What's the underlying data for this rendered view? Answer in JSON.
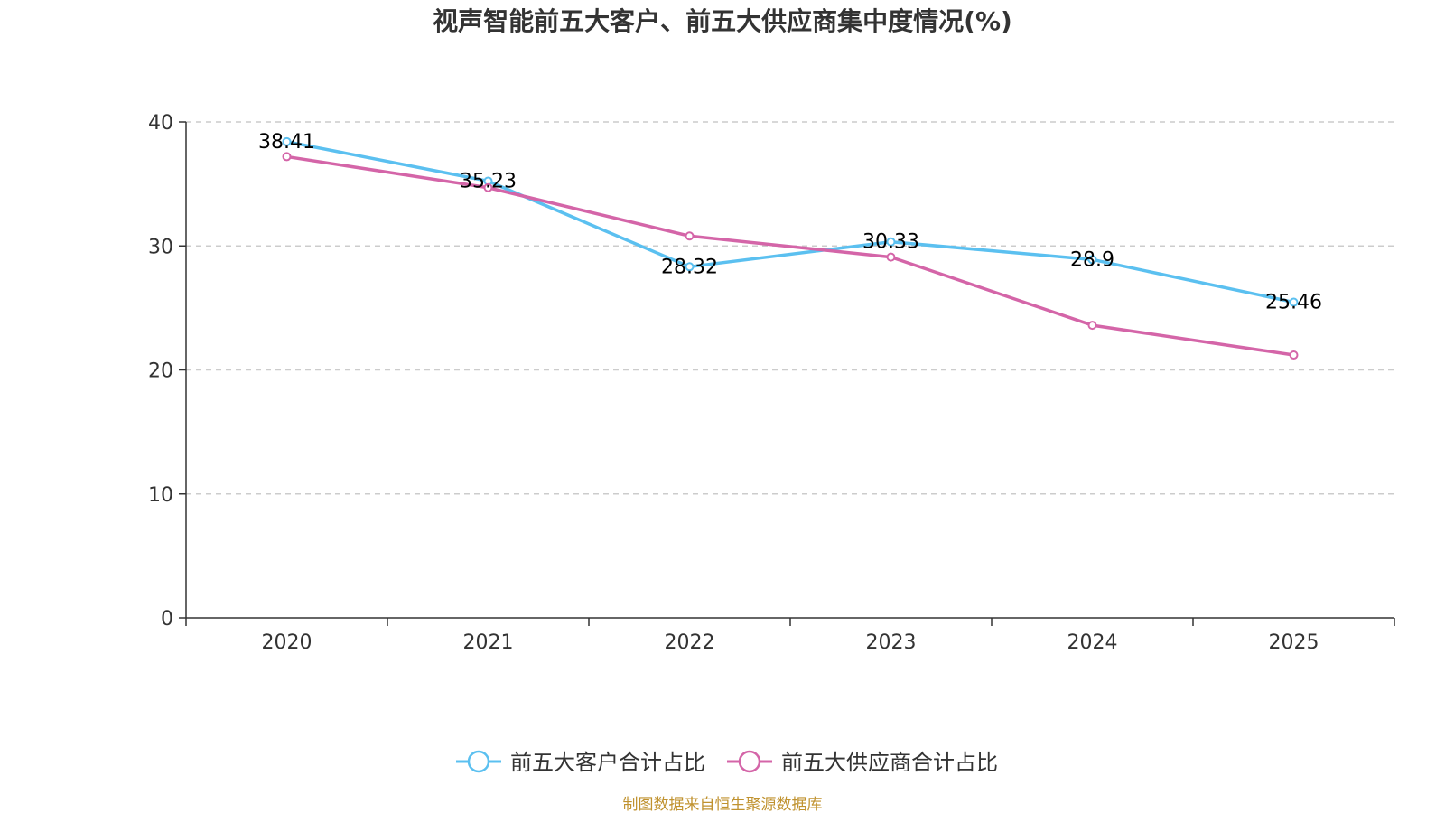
{
  "chart_data": {
    "type": "line",
    "title": "视声智能前五大客户、前五大供应商集中度情况(%)",
    "categories": [
      "2020",
      "2021",
      "2022",
      "2023",
      "2024",
      "2025"
    ],
    "ylim": [
      0,
      40
    ],
    "yticks": [
      0,
      10,
      20,
      30,
      40
    ],
    "grid": true,
    "legend_position": "bottom",
    "series": [
      {
        "name": "前五大客户合计占比",
        "color": "#5bc0f0",
        "values": [
          38.41,
          35.23,
          28.32,
          30.33,
          28.9,
          25.46
        ],
        "labels": [
          "38.41",
          "35.23",
          "28.32",
          "30.33",
          "28.9",
          "25.46"
        ]
      },
      {
        "name": "前五大供应商合计占比",
        "color": "#d465a8",
        "values": [
          37.2,
          34.7,
          30.8,
          29.1,
          23.6,
          21.2
        ]
      }
    ],
    "source": "制图数据来自恒生聚源数据库"
  }
}
